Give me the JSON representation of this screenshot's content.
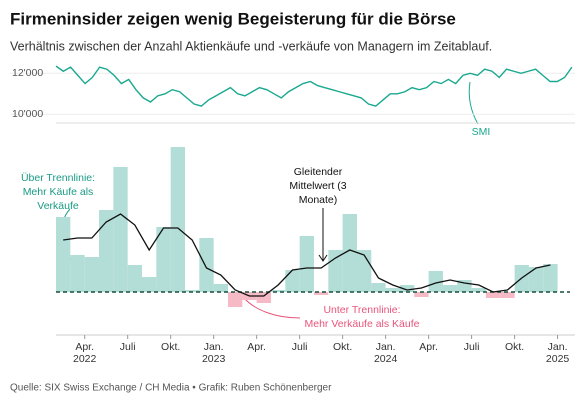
{
  "chart_data": {
    "type": "bar",
    "title": "Firmeninsider zeigen wenig Begeisterung für die Börse",
    "subtitle": "Verhältnis zwischen der Anzahl Aktienkäufe und -verkäufe von Managern im Zeitablauf.",
    "source": "Quelle: SIX Swiss Exchange / CH Media • Grafik: Ruben Schönenberger",
    "xlim": [
      0,
      37
    ],
    "xticks": [
      {
        "value": 3,
        "label": "Apr."
      },
      {
        "value": 6,
        "label": "Juli"
      },
      {
        "value": 9,
        "label": "Okt."
      },
      {
        "value": 12,
        "label": "Jan."
      },
      {
        "value": 15,
        "label": "Apr."
      },
      {
        "value": 18,
        "label": "Juli"
      },
      {
        "value": 21,
        "label": "Okt."
      },
      {
        "value": 24,
        "label": "Jan."
      },
      {
        "value": 27,
        "label": "Apr."
      },
      {
        "value": 30,
        "label": "Juli"
      },
      {
        "value": 33,
        "label": "Okt."
      },
      {
        "value": 36,
        "label": "Jan."
      }
    ],
    "xyears": [
      {
        "value": 3,
        "label": "2022"
      },
      {
        "value": 12,
        "label": "2023"
      },
      {
        "value": 24,
        "label": "2024"
      },
      {
        "value": 36,
        "label": "2025"
      }
    ],
    "ylim": [
      -40,
      150
    ],
    "bar_colors": {
      "positive": "#b3ddd7",
      "negative": "#f6b9c6"
    },
    "baseline_color": "#17503f",
    "bars": [
      75,
      37,
      35,
      82,
      125,
      27,
      15,
      65,
      145,
      2,
      54,
      8,
      -15,
      -8,
      -11,
      2,
      22,
      56,
      -3,
      42,
      78,
      42,
      9,
      4,
      7,
      -5,
      21,
      7,
      12,
      4,
      -6,
      -6,
      27,
      25,
      28
    ],
    "moving_average": {
      "color": "#111111",
      "values": [
        52,
        54,
        54,
        70,
        78,
        67,
        42,
        64,
        64,
        52,
        24,
        17,
        2,
        -4,
        -4,
        7,
        22,
        24,
        24,
        34,
        42,
        37,
        14,
        7,
        2,
        4,
        9,
        12,
        9,
        7,
        0,
        2,
        14,
        24,
        27
      ]
    },
    "smi": {
      "name": "SMI",
      "color": "#1aa88f",
      "ylim": [
        9800,
        12600
      ],
      "yticks": [
        {
          "value": 12000,
          "label": "12'000"
        },
        {
          "value": 10000,
          "label": "10'000"
        }
      ],
      "values": [
        12350,
        12100,
        12300,
        11900,
        11500,
        11800,
        12300,
        12200,
        11900,
        11500,
        11700,
        11200,
        10800,
        10600,
        10900,
        11000,
        11200,
        11100,
        10800,
        10500,
        10400,
        10700,
        10900,
        11100,
        11300,
        11000,
        10900,
        11100,
        11300,
        11200,
        11000,
        10800,
        11100,
        11300,
        11500,
        11600,
        11400,
        11300,
        11200,
        11100,
        11000,
        10900,
        10800,
        10500,
        10400,
        10700,
        11000,
        11000,
        11100,
        11300,
        11200,
        11300,
        11600,
        11500,
        11700,
        11500,
        11900,
        12000,
        11900,
        12200,
        12100,
        11800,
        12200,
        12100,
        12000,
        12100,
        12200,
        11900,
        11600,
        11600,
        11800,
        12300
      ]
    },
    "annotations": [
      {
        "lines": [
          "Über Trennlinie:",
          "Mehr Käufe als",
          "Verkäufe"
        ],
        "color": "#1a9a84"
      },
      {
        "lines": [
          "Gleitender",
          "Mittelwert (3",
          "Monate)"
        ],
        "color": "#111111"
      },
      {
        "lines": [
          "Unter Trennlinie:",
          "Mehr Verkäufe als Käufe"
        ],
        "color": "#e8557a"
      }
    ]
  }
}
